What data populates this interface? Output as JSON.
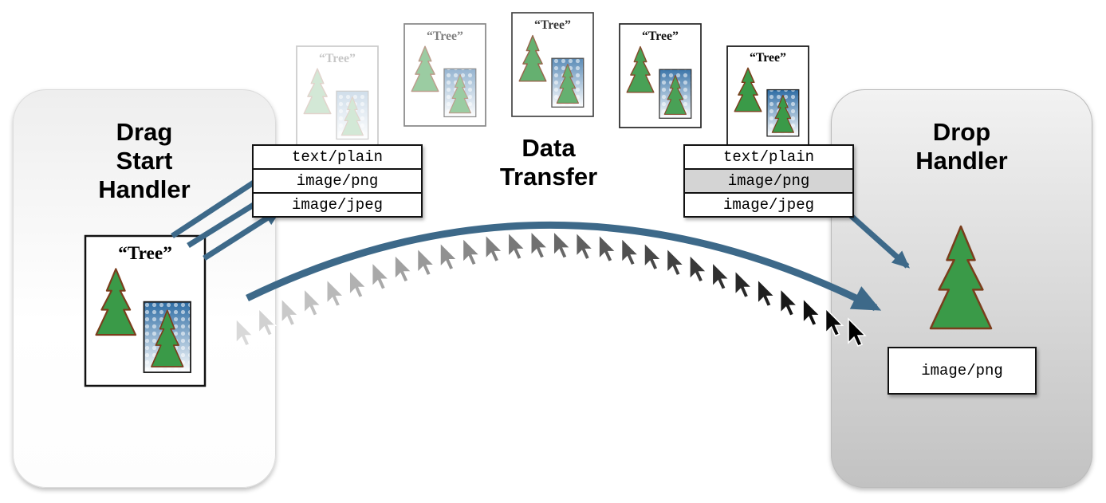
{
  "headings": {
    "drag_start": [
      "Drag",
      "Start",
      "Handler"
    ],
    "data_transfer": [
      "Data",
      "Transfer"
    ],
    "drop": [
      "Drop",
      "Handler"
    ]
  },
  "document_label": "“Tree”",
  "left_mime_types": [
    "text/plain",
    "image/png",
    "image/jpeg"
  ],
  "right_mime_types": [
    "text/plain",
    "image/png",
    "image/jpeg"
  ],
  "selected_mime_index": 1,
  "drop_result": "image/png",
  "colors": {
    "arrow": "#3d6989",
    "tree_fill": "#3a9a48",
    "tree_stroke": "#7a3d1c",
    "card_border": "#111111"
  }
}
